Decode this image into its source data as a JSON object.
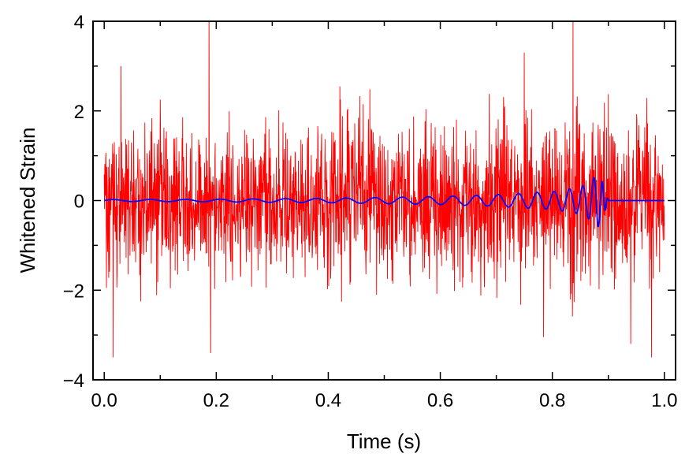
{
  "chart_data": {
    "type": "line",
    "title": "",
    "xlabel": "Time (s)",
    "ylabel": "Whitened Strain",
    "xlim": [
      -0.02,
      1.02
    ],
    "ylim": [
      -4,
      4
    ],
    "xticks": [
      0.0,
      0.2,
      0.4,
      0.6,
      0.8,
      1.0
    ],
    "xtick_labels": [
      "0.0",
      "0.2",
      "0.4",
      "0.6",
      "0.8",
      "1.0"
    ],
    "yticks": [
      -4,
      -2,
      0,
      2,
      4
    ],
    "ytick_labels": [
      "−4",
      "−2",
      "0",
      "2",
      "4"
    ],
    "grid": false,
    "legend": "none",
    "series": [
      {
        "color": "#ff0000",
        "x_range": [
          0.0,
          1.0
        ],
        "description_values": {
          "peak_positive": [
            [
              0.187,
              4.3
            ],
            [
              0.837,
              4.2
            ],
            [
              0.75,
              3.3
            ],
            [
              0.03,
              3.0
            ]
          ],
          "peak_negative": [
            [
              0.016,
              -3.5
            ],
            [
              0.19,
              -3.4
            ],
            [
              0.977,
              -3.5
            ],
            [
              0.94,
              -3.2
            ]
          ],
          "typical_envelope": [
            -2.2,
            2.2
          ]
        }
      },
      {
        "color": "#0000ff",
        "x": [
          0.0,
          0.2,
          0.4,
          0.6,
          0.7,
          0.8,
          0.85,
          0.87,
          0.88,
          0.885,
          0.89,
          0.9,
          1.0
        ],
        "amplitude": [
          0.02,
          0.03,
          0.05,
          0.09,
          0.13,
          0.2,
          0.3,
          0.45,
          0.6,
          0.55,
          0.4,
          0.0,
          0.0
        ]
      }
    ]
  }
}
